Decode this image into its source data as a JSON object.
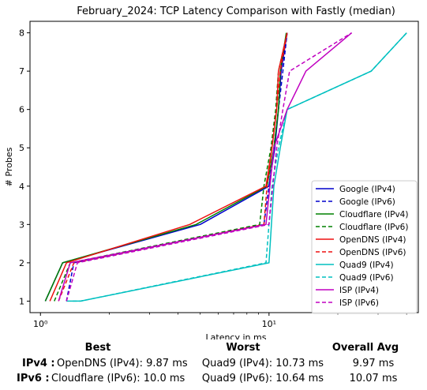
{
  "chart_data": {
    "type": "line",
    "title": "February_2024: TCP Latency Comparison with Fastly (median)",
    "xlabel": "Latency in ms",
    "ylabel": "# Probes",
    "xscale": "log",
    "xlim": [
      0.9,
      45
    ],
    "ylim": [
      0.7,
      8.3
    ],
    "xticks": [
      {
        "value": 1,
        "label": "10⁰"
      },
      {
        "value": 10,
        "label": "10¹"
      }
    ],
    "yticks": [
      1,
      2,
      3,
      4,
      5,
      6,
      7,
      8
    ],
    "grid": false,
    "legend_position": "lower-right",
    "series": [
      {
        "name": "Google (IPv4)",
        "color": "#0000cc",
        "dash": "solid",
        "points": [
          [
            1.05,
            1
          ],
          [
            1.25,
            2
          ],
          [
            5,
            3
          ],
          [
            10,
            4
          ],
          [
            10.6,
            5
          ],
          [
            11,
            6
          ],
          [
            11.3,
            7
          ],
          [
            12,
            8
          ]
        ]
      },
      {
        "name": "Google (IPv6)",
        "color": "#0000cc",
        "dash": "dashed",
        "points": [
          [
            1.3,
            1
          ],
          [
            1.4,
            2
          ],
          [
            9.5,
            3
          ],
          [
            10,
            4
          ],
          [
            10.5,
            5
          ],
          [
            11,
            6
          ],
          [
            11.5,
            7
          ],
          [
            12,
            8
          ]
        ]
      },
      {
        "name": "Cloudflare (IPv4)",
        "color": "#008000",
        "dash": "solid",
        "points": [
          [
            1.05,
            1
          ],
          [
            1.25,
            2
          ],
          [
            4.8,
            3
          ],
          [
            9.8,
            4
          ],
          [
            10.5,
            5
          ],
          [
            11,
            6
          ],
          [
            11.2,
            7
          ],
          [
            11.9,
            8
          ]
        ]
      },
      {
        "name": "Cloudflare (IPv6)",
        "color": "#008000",
        "dash": "dashed",
        "points": [
          [
            1.15,
            1
          ],
          [
            1.35,
            2
          ],
          [
            9.1,
            3
          ],
          [
            9.5,
            4
          ],
          [
            10.2,
            5
          ],
          [
            10.7,
            6
          ],
          [
            11,
            7
          ],
          [
            12,
            8
          ]
        ]
      },
      {
        "name": "OpenDNS (IPv4)",
        "color": "#ee1111",
        "dash": "solid",
        "points": [
          [
            1.1,
            1
          ],
          [
            1.3,
            2
          ],
          [
            4.5,
            3
          ],
          [
            9.7,
            4
          ],
          [
            10.3,
            5
          ],
          [
            10.8,
            6
          ],
          [
            11,
            7
          ],
          [
            12,
            8
          ]
        ]
      },
      {
        "name": "OpenDNS (IPv6)",
        "color": "#ee1111",
        "dash": "dashed",
        "points": [
          [
            1.2,
            1
          ],
          [
            1.4,
            2
          ],
          [
            9.5,
            3
          ],
          [
            9.8,
            4
          ],
          [
            10.3,
            5
          ],
          [
            10.8,
            6
          ],
          [
            11.2,
            7
          ],
          [
            12,
            8
          ]
        ]
      },
      {
        "name": "Quad9 (IPv4)",
        "color": "#00c0c0",
        "dash": "solid",
        "points": [
          [
            1.35,
            1
          ],
          [
            1.5,
            1
          ],
          [
            10,
            2
          ],
          [
            10.5,
            4
          ],
          [
            11.2,
            5
          ],
          [
            12,
            6
          ],
          [
            28,
            7
          ],
          [
            40,
            8
          ]
        ]
      },
      {
        "name": "Quad9 (IPv6)",
        "color": "#00c0c0",
        "dash": "dashed",
        "points": [
          [
            1.3,
            1
          ],
          [
            1.5,
            1
          ],
          [
            9.7,
            2
          ],
          [
            10.3,
            4
          ],
          [
            11,
            5
          ],
          [
            12,
            6
          ],
          [
            28,
            7
          ],
          [
            40,
            8
          ]
        ]
      },
      {
        "name": "ISP (IPv4)",
        "color": "#c000c0",
        "dash": "solid",
        "points": [
          [
            1.2,
            1
          ],
          [
            1.35,
            2
          ],
          [
            9.7,
            3
          ],
          [
            10.5,
            5
          ],
          [
            12,
            6
          ],
          [
            14.5,
            7
          ],
          [
            23,
            8
          ]
        ]
      },
      {
        "name": "ISP (IPv6)",
        "color": "#c000c0",
        "dash": "dashed",
        "points": [
          [
            1.3,
            1
          ],
          [
            1.45,
            2
          ],
          [
            10,
            3
          ],
          [
            10.8,
            5
          ],
          [
            11.5,
            6
          ],
          [
            12.3,
            7
          ],
          [
            23,
            8
          ]
        ]
      }
    ]
  },
  "summary": {
    "headers": {
      "best": "Best",
      "worst": "Worst",
      "avg": "Overall Avg"
    },
    "rows": [
      {
        "label": "IPv4 :",
        "best": "OpenDNS (IPv4): 9.87 ms",
        "worst": "Quad9 (IPv4): 10.73 ms",
        "avg": "9.97 ms"
      },
      {
        "label": "IPv6 :",
        "best": "Cloudflare (IPv6): 10.0 ms",
        "worst": "Quad9 (IPv6): 10.64 ms",
        "avg": "10.07 ms"
      }
    ]
  }
}
